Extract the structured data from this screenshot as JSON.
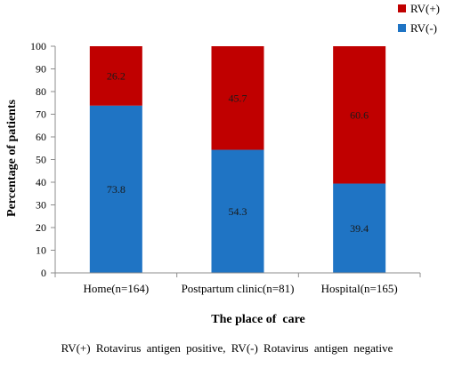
{
  "chart_data": {
    "type": "bar",
    "stacked": true,
    "categories": [
      "Home(n=164)",
      "Postpartum clinic(n=81)",
      "Hospital(n=165)"
    ],
    "series": [
      {
        "name": "RV(-)",
        "color": "#1f74c4",
        "values": [
          73.8,
          54.3,
          39.4
        ]
      },
      {
        "name": "RV(+)",
        "color": "#c00000",
        "values": [
          26.2,
          45.7,
          60.6
        ]
      }
    ],
    "legend_order": [
      "RV(+)",
      "RV(-)"
    ],
    "legend_position": "top-right",
    "title": "",
    "xlabel": "The place of  care",
    "ylabel": "Percentage of patients",
    "ylim": [
      0,
      100
    ],
    "yticks": [
      0,
      10,
      20,
      30,
      40,
      50,
      60,
      70,
      80,
      90,
      100
    ],
    "grid": false,
    "data_labels": true
  },
  "caption": "RV(+) Rotavirus antigen positive, RV(-) Rotavirus antigen negative"
}
